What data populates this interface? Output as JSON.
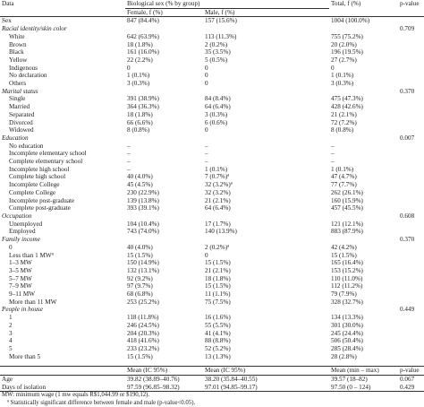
{
  "header": {
    "col_data": "Data",
    "col_sex": "Biological sex (% by group)",
    "col_total": "Total, f (%)",
    "col_p": "p-value",
    "sub_female": "Female, f (%)",
    "sub_male": "Male, f (%)"
  },
  "rows": [
    {
      "type": "data",
      "label": "Sex",
      "indent": false,
      "female": "847 (84.4%)",
      "male": "157 (15.6%)",
      "total": "1004 (100.0%)",
      "p": ""
    },
    {
      "type": "section",
      "label": "Racial identity/skin color",
      "p": "0.709"
    },
    {
      "type": "data",
      "label": "White",
      "indent": true,
      "female": "642 (63.9%)",
      "male": "113 (11.3%)",
      "total": "755 (75.2%)",
      "p": ""
    },
    {
      "type": "data",
      "label": "Brown",
      "indent": true,
      "female": "18 (1.8%)",
      "male": "2 (0.2%)",
      "total": "20 (2.0%)",
      "p": ""
    },
    {
      "type": "data",
      "label": "Black",
      "indent": true,
      "female": "161 (16.0%)",
      "male": "35 (3.5%)",
      "total": "196 (19.5%)",
      "p": ""
    },
    {
      "type": "data",
      "label": "Yellow",
      "indent": true,
      "female": "22 (2.2%)",
      "male": "5 (0.5%)",
      "total": "27 (2.7%)",
      "p": ""
    },
    {
      "type": "data",
      "label": "Indigenous",
      "indent": true,
      "female": "0",
      "male": "0",
      "total": "0",
      "p": ""
    },
    {
      "type": "data",
      "label": "No declaration",
      "indent": true,
      "female": "1 (0.1%)",
      "male": "0",
      "total": "1 (0.1%)",
      "p": ""
    },
    {
      "type": "data",
      "label": "Others",
      "indent": true,
      "female": "3 (0.3%)",
      "male": "0",
      "total": "3 (0.3%)",
      "p": ""
    },
    {
      "type": "section",
      "label": "Marital status",
      "p": "0.370"
    },
    {
      "type": "data",
      "label": "Single",
      "indent": true,
      "female": "391 (38.9%)",
      "male": "84 (8.4%)",
      "total": "475 (47.3%)",
      "p": ""
    },
    {
      "type": "data",
      "label": "Married",
      "indent": true,
      "female": "364 (36.3%)",
      "male": "64 (6.4%)",
      "total": "428 (42.6%)",
      "p": ""
    },
    {
      "type": "data",
      "label": "Separated",
      "indent": true,
      "female": "18 (1.8%)",
      "male": "3 (0.3%)",
      "total": "21 (2.1%)",
      "p": ""
    },
    {
      "type": "data",
      "label": "Divorced",
      "indent": true,
      "female": "66 (6.6%)",
      "male": "6 (0.6%)",
      "total": "72 (7.2%)",
      "p": ""
    },
    {
      "type": "data",
      "label": "Widowed",
      "indent": true,
      "female": "8 (0.8%)",
      "male": "0",
      "total": "8 (0.8%)",
      "p": ""
    },
    {
      "type": "section",
      "label": "Education",
      "p": "0.007"
    },
    {
      "type": "data",
      "label": "No education",
      "indent": true,
      "female": "–",
      "male": "–",
      "total": "–",
      "p": ""
    },
    {
      "type": "data",
      "label": "Incomplete elementary school",
      "indent": true,
      "female": "–",
      "male": "–",
      "total": "–",
      "p": ""
    },
    {
      "type": "data",
      "label": "Complete elementary school",
      "indent": true,
      "female": "–",
      "male": "–",
      "total": "–",
      "p": ""
    },
    {
      "type": "data",
      "label": "Incomplete high school",
      "indent": true,
      "female": "–",
      "male": "1 (0.1%)",
      "total": "1 (0.1%)",
      "p": ""
    },
    {
      "type": "data",
      "label": "Complete high school",
      "indent": true,
      "female": "40 (4.0%)",
      "male": "7 (0.7%)ª",
      "total": "47 (4.7%)",
      "p": ""
    },
    {
      "type": "data",
      "label": "Incomplete College",
      "indent": true,
      "female": "45 (4.5%)",
      "male": "32 (3.2%)ª",
      "total": "77 (7.7%)",
      "p": ""
    },
    {
      "type": "data",
      "label": "Complete College",
      "indent": true,
      "female": "230 (22.9%)",
      "male": "32 (3.2%)",
      "total": "262 (26.1%)",
      "p": ""
    },
    {
      "type": "data",
      "label": "Incomplete post-graduate",
      "indent": true,
      "female": "139 (13.8%)",
      "male": "21 (2.1%)",
      "total": "160 (15.9%)",
      "p": ""
    },
    {
      "type": "data",
      "label": "Complete post-graduate",
      "indent": true,
      "female": "393 (39.1%)",
      "male": "64 (6.4%)",
      "total": "457 (45.5%)",
      "p": ""
    },
    {
      "type": "section",
      "label": "Occupation",
      "p": "0.608"
    },
    {
      "type": "data",
      "label": "Unemployed",
      "indent": true,
      "female": "104 (10.4%)",
      "male": "17 (1.7%)",
      "total": "121 (12.1%)",
      "p": ""
    },
    {
      "type": "data",
      "label": "Employed",
      "indent": true,
      "female": "743 (74.0%)",
      "male": "140 (13.9%)",
      "total": "883 (87.9%)",
      "p": ""
    },
    {
      "type": "section",
      "label": "Family income",
      "p": "0.370"
    },
    {
      "type": "data",
      "label": "0",
      "indent": true,
      "female": "40 (4.0%)",
      "male": "2 (0.2%)ª",
      "total": "42 (4.2%)",
      "p": ""
    },
    {
      "type": "data",
      "label": "Less than 1 MWª",
      "indent": true,
      "female": "15 (1.5%)",
      "male": "0",
      "total": "15 (1.5%)",
      "p": ""
    },
    {
      "type": "data",
      "label": "1–3 MW",
      "indent": true,
      "female": "150 (14.9%)",
      "male": "15 (1.5%)",
      "total": "165 (16.4%)",
      "p": ""
    },
    {
      "type": "data",
      "label": "3–5 MW",
      "indent": true,
      "female": "132 (13.1%)",
      "male": "21 (2.1%)",
      "total": "153 (15.2%)",
      "p": ""
    },
    {
      "type": "data",
      "label": "5–7 MW",
      "indent": true,
      "female": "92 (9.2%)",
      "male": "18 (1.8%)",
      "total": "110 (11.0%)",
      "p": ""
    },
    {
      "type": "data",
      "label": "7–9 MW",
      "indent": true,
      "female": "97 (9.7%)",
      "male": "15 (1.5%)",
      "total": "112 (11.2%)",
      "p": ""
    },
    {
      "type": "data",
      "label": "9–11 MW",
      "indent": true,
      "female": "68 (6.8%)",
      "male": "11 (1.1%)",
      "total": "79 (7.9%)",
      "p": ""
    },
    {
      "type": "data",
      "label": "More than 11 MW",
      "indent": true,
      "female": "253 (25.2%)",
      "male": "75 (7.5%)",
      "total": "328 (32.7%)",
      "p": ""
    },
    {
      "type": "section",
      "label": "People in house",
      "p": "0.449"
    },
    {
      "type": "data",
      "label": "1",
      "indent": true,
      "female": "118 (11.8%)",
      "male": "16 (1.6%)",
      "total": "134 (13.3%)",
      "p": ""
    },
    {
      "type": "data",
      "label": "2",
      "indent": true,
      "female": "246 (24.5%)",
      "male": "55 (5.5%)",
      "total": "301 (30.0%)",
      "p": ""
    },
    {
      "type": "data",
      "label": "3",
      "indent": true,
      "female": "204 (20.3%)",
      "male": "41 (4.1%)",
      "total": "245 (24.4%)",
      "p": ""
    },
    {
      "type": "data",
      "label": "4",
      "indent": true,
      "female": "418 (41.6%)",
      "male": "88 (8.8%)",
      "total": "506 (50.4%)",
      "p": ""
    },
    {
      "type": "data",
      "label": "5",
      "indent": true,
      "female": "233 (23.2%)",
      "male": "52 (5.2%)",
      "total": "285 (28.4%)",
      "p": ""
    },
    {
      "type": "data",
      "label": "More than 5",
      "indent": true,
      "female": "15 (1.5%)",
      "male": "13 (1.3%)",
      "total": "28 (2.8%)",
      "p": ""
    }
  ],
  "mean_header": {
    "female": "Mean (IC 95%)",
    "male": "Mean (IC 95%)",
    "total": "Mean (min – max)",
    "p": "p-value"
  },
  "mean_rows": [
    {
      "label": "Age",
      "female": "39.82 (38.89–40.76)",
      "male": "38.20 (35.84–40.55)",
      "total": "39.57 (18–82)",
      "p": "0.067"
    },
    {
      "label": "Days of isolation",
      "female": "97.59 (96.85–98.32)",
      "male": "97.01 (94.85–99.17)",
      "total": "97.50 (0 – 124)",
      "p": "0.429"
    }
  ],
  "notes": [
    "MW: minimum wage (1 mw equals R$1,044.99 or $190,12).",
    "ª  Statistically significant difference between female and male (p-value<0.05)."
  ]
}
